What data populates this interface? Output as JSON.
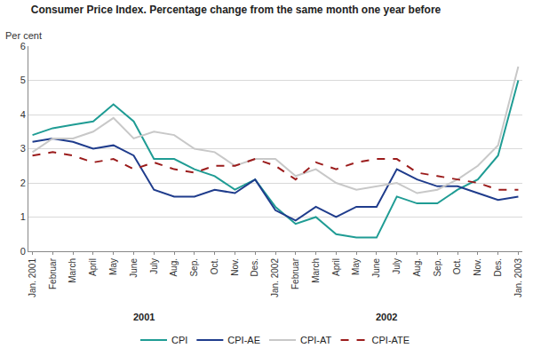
{
  "chart_data": {
    "type": "line",
    "title": "Consumer Price Index. Percentage change from the same month one year before",
    "ylabel": "Per cent",
    "categories": [
      "Jan. 2001",
      "Februar",
      "March",
      "April",
      "May",
      "June",
      "July",
      "Aug.",
      "Sep.",
      "Oct.",
      "Nov.",
      "Des.",
      "Jan. 2002",
      "Februar",
      "March",
      "April",
      "May",
      "June",
      "July",
      "Aug.",
      "Sep.",
      "Oct.",
      "Nov.",
      "Des.",
      "Jan. 2003"
    ],
    "series": [
      {
        "name": "CPI",
        "color": "#1f9c94",
        "line_style": "solid",
        "values": [
          3.4,
          3.6,
          3.7,
          3.8,
          4.3,
          3.8,
          2.7,
          2.7,
          2.4,
          2.2,
          1.8,
          2.1,
          1.3,
          0.8,
          1.0,
          0.5,
          0.4,
          0.4,
          1.6,
          1.4,
          1.4,
          1.8,
          2.1,
          2.8,
          5.0
        ]
      },
      {
        "name": "CPI-AE",
        "color": "#1f3c8c",
        "line_style": "solid",
        "values": [
          3.2,
          3.3,
          3.2,
          3.0,
          3.1,
          2.8,
          1.8,
          1.6,
          1.6,
          1.8,
          1.7,
          2.1,
          1.2,
          0.9,
          1.3,
          1.0,
          1.3,
          1.3,
          2.4,
          2.1,
          1.9,
          1.9,
          1.7,
          1.5,
          1.6
        ]
      },
      {
        "name": "CPI-AT",
        "color": "#c8c8c8",
        "line_style": "solid",
        "values": [
          2.9,
          3.3,
          3.3,
          3.5,
          3.9,
          3.3,
          3.5,
          3.4,
          3.0,
          2.9,
          2.5,
          2.7,
          2.7,
          2.2,
          2.4,
          2.0,
          1.8,
          1.9,
          2.0,
          1.7,
          1.8,
          2.1,
          2.5,
          3.1,
          5.4
        ]
      },
      {
        "name": "CPI-ATE",
        "color": "#9b1c1c",
        "line_style": "dash",
        "values": [
          2.8,
          2.9,
          2.8,
          2.6,
          2.7,
          2.4,
          2.6,
          2.4,
          2.3,
          2.5,
          2.5,
          2.7,
          2.5,
          2.1,
          2.6,
          2.4,
          2.6,
          2.7,
          2.7,
          2.3,
          2.2,
          2.1,
          2.0,
          1.8,
          1.8
        ]
      }
    ],
    "annotations": [
      {
        "text": "2001",
        "x": 5.5
      },
      {
        "text": "2002",
        "x": 17.5
      }
    ],
    "ylim": [
      0,
      6
    ],
    "yticks": [
      0,
      1,
      2,
      3,
      4,
      5,
      6
    ],
    "grid": true,
    "legend": "bottom"
  }
}
